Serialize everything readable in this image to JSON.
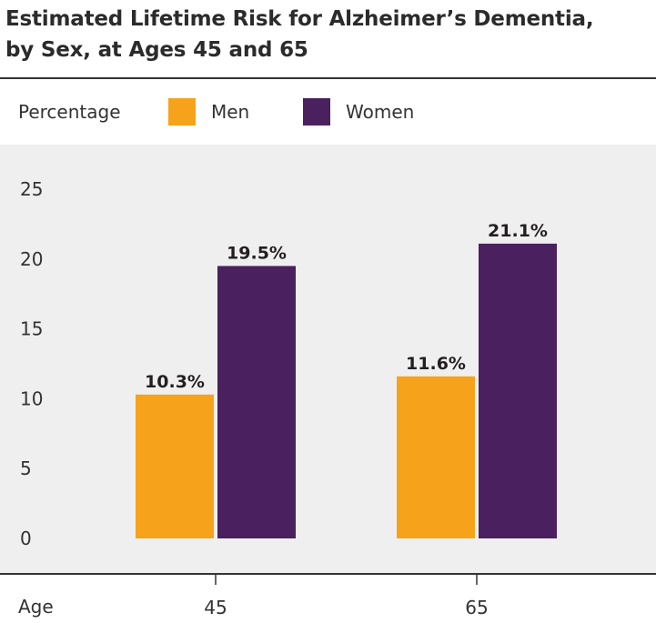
{
  "title": {
    "line1": "Estimated Lifetime Risk for Alzheimer’s Dementia,",
    "line2": "by Sex, at Ages 45 and 65"
  },
  "legend": {
    "label": "Percentage",
    "men": "Men",
    "women": "Women"
  },
  "colors": {
    "men": "#f7a21b",
    "women": "#4a205e",
    "plot_bg": "#efefef"
  },
  "chart_data": {
    "type": "bar",
    "title": "Estimated Lifetime Risk for Alzheimer’s Dementia, by Sex, at Ages 45 and 65",
    "xlabel": "Age",
    "ylabel": "Percentage",
    "categories": [
      "45",
      "65"
    ],
    "series": [
      {
        "name": "Men",
        "values": [
          10.3,
          11.6
        ],
        "labels": [
          "10.3%",
          "11.6%"
        ]
      },
      {
        "name": "Women",
        "values": [
          19.5,
          21.1
        ],
        "labels": [
          "19.5%",
          "21.1%"
        ]
      }
    ],
    "yticks": [
      0,
      5,
      10,
      15,
      20,
      25
    ],
    "ylim": [
      0,
      25
    ],
    "grid": false,
    "legend_position": "top"
  }
}
